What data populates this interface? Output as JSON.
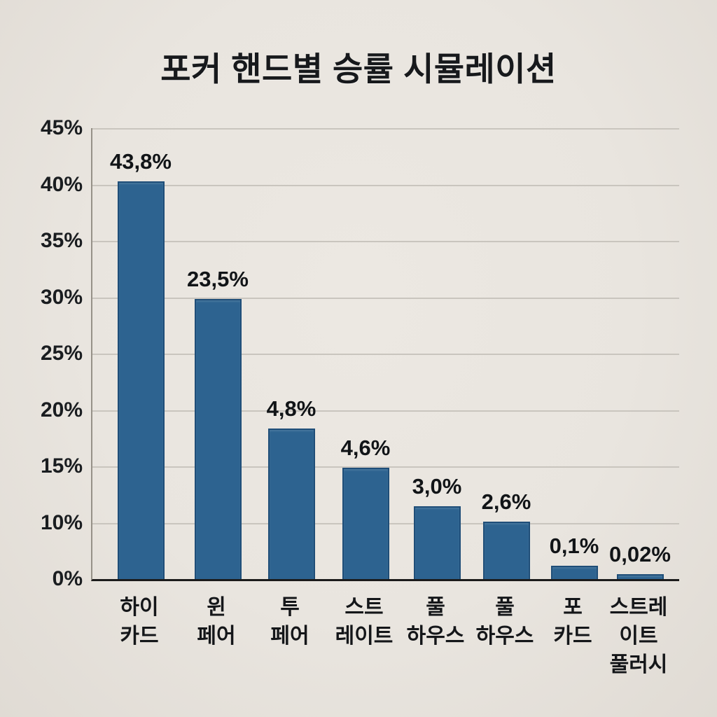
{
  "title": "포커 핸드별 승률 시뮬레이션",
  "chart_data": {
    "type": "bar",
    "title": "포커 핸드별 승률 시뮬레이션",
    "categories": [
      "하이 카드",
      "윈 페어",
      "투 페어",
      "스트 레이트",
      "풀 하우스",
      "풀 하우스",
      "포 카드",
      "스트레 이트 풀러시"
    ],
    "category_label_lines": [
      [
        "하이",
        "카드"
      ],
      [
        "윈",
        "페어"
      ],
      [
        "투",
        "페어"
      ],
      [
        "스트",
        "레이트"
      ],
      [
        "풀",
        "하우스"
      ],
      [
        "풀",
        "하우스"
      ],
      [
        "포",
        "카드"
      ],
      [
        "스트레",
        "이트",
        "풀러시"
      ]
    ],
    "values": [
      43.8,
      23.5,
      4.8,
      4.6,
      3.0,
      2.6,
      0.1,
      0.02
    ],
    "value_labels": [
      "43,8%",
      "23,5%",
      "4,8%",
      "4,6%",
      "3,0%",
      "2,6%",
      "0,1%",
      "0,02%"
    ],
    "visual_bar_heights_frac_of_plot": [
      0.882,
      0.621,
      0.334,
      0.247,
      0.161,
      0.127,
      0.03,
      0.011
    ],
    "y_tick_labels": [
      "45%",
      "40%",
      "35%",
      "30%",
      "25%",
      "20%",
      "15%",
      "10%",
      "0%"
    ],
    "ylim": [
      0,
      45
    ],
    "grid": true,
    "legend": false,
    "decimal_separator": ",",
    "colors": {
      "bar_fill": "#2d6390",
      "bar_border": "#1f4e78",
      "background": "#e9e5df",
      "text": "#14171a",
      "gridline": "#c9c5be",
      "axis_baseline": "#1b1b1b",
      "axis_spine": "#969188"
    }
  }
}
